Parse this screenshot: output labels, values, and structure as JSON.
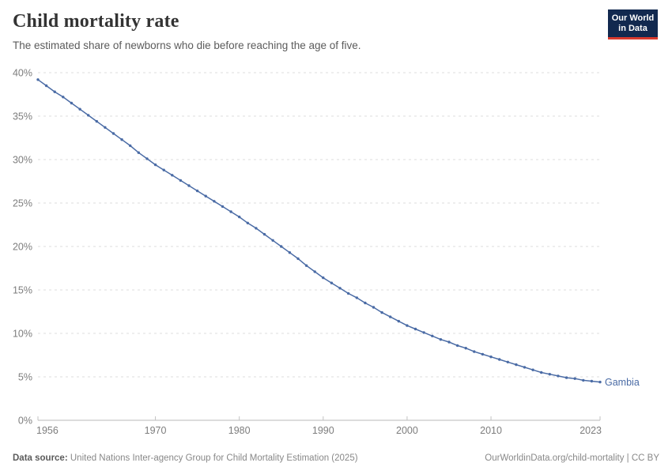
{
  "header": {
    "title": "Child mortality rate",
    "subtitle": "The estimated share of newborns who die before reaching the age of five.",
    "logo_line1": "Our World",
    "logo_line2": "in Data"
  },
  "footer": {
    "source_label": "Data source:",
    "source_text": " United Nations Inter-agency Group for Child Mortality Estimation (2025)",
    "link_text": "OurWorldinData.org/child-mortality | CC BY"
  },
  "colors": {
    "line": "#4a6ba5",
    "grid": "#dedede",
    "axis": "#b9b9b9",
    "tick": "#c2c2c2",
    "tick_label": "#7d7d7d",
    "logo_bg": "#12294f",
    "logo_stripe": "#d93a2e"
  },
  "chart_data": {
    "type": "line",
    "title": "Child mortality rate",
    "xlabel": "",
    "ylabel": "",
    "xlim": [
      1956,
      2023
    ],
    "ylim": [
      0,
      40
    ],
    "grid": "horizontal-dashed",
    "legend_position": "end-of-line-label",
    "x_ticks": [
      1956,
      1970,
      1980,
      1990,
      2000,
      2010,
      2023
    ],
    "y_ticks": [
      0,
      5,
      10,
      15,
      20,
      25,
      30,
      35,
      40
    ],
    "y_tick_suffix": "%",
    "series": [
      {
        "name": "Gambia",
        "color": "#4a6ba5",
        "points": [
          [
            1956,
            39.2
          ],
          [
            1957,
            38.5
          ],
          [
            1958,
            37.8
          ],
          [
            1959,
            37.2
          ],
          [
            1960,
            36.5
          ],
          [
            1961,
            35.8
          ],
          [
            1962,
            35.1
          ],
          [
            1963,
            34.4
          ],
          [
            1964,
            33.7
          ],
          [
            1965,
            33.0
          ],
          [
            1966,
            32.3
          ],
          [
            1967,
            31.6
          ],
          [
            1968,
            30.8
          ],
          [
            1969,
            30.1
          ],
          [
            1970,
            29.4
          ],
          [
            1971,
            28.8
          ],
          [
            1972,
            28.2
          ],
          [
            1973,
            27.6
          ],
          [
            1974,
            27.0
          ],
          [
            1975,
            26.4
          ],
          [
            1976,
            25.8
          ],
          [
            1977,
            25.2
          ],
          [
            1978,
            24.6
          ],
          [
            1979,
            24.0
          ],
          [
            1980,
            23.4
          ],
          [
            1981,
            22.7
          ],
          [
            1982,
            22.1
          ],
          [
            1983,
            21.4
          ],
          [
            1984,
            20.7
          ],
          [
            1985,
            20.0
          ],
          [
            1986,
            19.3
          ],
          [
            1987,
            18.6
          ],
          [
            1988,
            17.8
          ],
          [
            1989,
            17.1
          ],
          [
            1990,
            16.4
          ],
          [
            1991,
            15.8
          ],
          [
            1992,
            15.2
          ],
          [
            1993,
            14.6
          ],
          [
            1994,
            14.1
          ],
          [
            1995,
            13.5
          ],
          [
            1996,
            13.0
          ],
          [
            1997,
            12.4
          ],
          [
            1998,
            11.9
          ],
          [
            1999,
            11.4
          ],
          [
            2000,
            10.9
          ],
          [
            2001,
            10.5
          ],
          [
            2002,
            10.1
          ],
          [
            2003,
            9.7
          ],
          [
            2004,
            9.3
          ],
          [
            2005,
            9.0
          ],
          [
            2006,
            8.6
          ],
          [
            2007,
            8.3
          ],
          [
            2008,
            7.9
          ],
          [
            2009,
            7.6
          ],
          [
            2010,
            7.3
          ],
          [
            2011,
            7.0
          ],
          [
            2012,
            6.7
          ],
          [
            2013,
            6.4
          ],
          [
            2014,
            6.1
          ],
          [
            2015,
            5.8
          ],
          [
            2016,
            5.5
          ],
          [
            2017,
            5.3
          ],
          [
            2018,
            5.1
          ],
          [
            2019,
            4.9
          ],
          [
            2020,
            4.8
          ],
          [
            2021,
            4.6
          ],
          [
            2022,
            4.5
          ],
          [
            2023,
            4.4
          ]
        ]
      }
    ]
  }
}
